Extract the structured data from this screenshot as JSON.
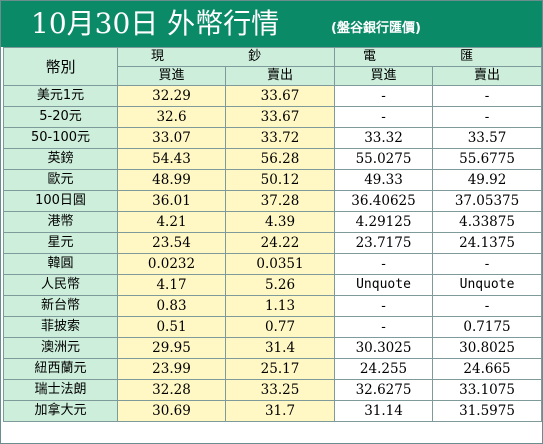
{
  "title": {
    "main": "10月30日 外幣行情",
    "source": "(盤谷銀行匯價)"
  },
  "headers": {
    "corner": "幣別",
    "cash": "現 鈔",
    "wire": "電 匯",
    "buy": "買進",
    "sell": "賣出"
  },
  "rows": [
    {
      "currency": "美元1元",
      "cash_buy": "32.29",
      "cash_sell": "33.67",
      "wire_buy": "-",
      "wire_sell": "-"
    },
    {
      "currency": "5-20元",
      "cash_buy": "32.6",
      "cash_sell": "33.67",
      "wire_buy": "-",
      "wire_sell": "-"
    },
    {
      "currency": "50-100元",
      "cash_buy": "33.07",
      "cash_sell": "33.72",
      "wire_buy": "33.32",
      "wire_sell": "33.57"
    },
    {
      "currency": "英鎊",
      "cash_buy": "54.43",
      "cash_sell": "56.28",
      "wire_buy": "55.0275",
      "wire_sell": "55.6775"
    },
    {
      "currency": "歐元",
      "cash_buy": "48.99",
      "cash_sell": "50.12",
      "wire_buy": "49.33",
      "wire_sell": "49.92"
    },
    {
      "currency": "100日圓",
      "cash_buy": "36.01",
      "cash_sell": "37.28",
      "wire_buy": "36.40625",
      "wire_sell": "37.05375"
    },
    {
      "currency": "港幣",
      "cash_buy": "4.21",
      "cash_sell": "4.39",
      "wire_buy": "4.29125",
      "wire_sell": "4.33875"
    },
    {
      "currency": "星元",
      "cash_buy": "23.54",
      "cash_sell": "24.22",
      "wire_buy": "23.7175",
      "wire_sell": "24.1375"
    },
    {
      "currency": "韓圓",
      "cash_buy": "0.0232",
      "cash_sell": "0.0351",
      "wire_buy": "-",
      "wire_sell": "-"
    },
    {
      "currency": "人民幣",
      "cash_buy": "4.17",
      "cash_sell": "5.26",
      "wire_buy": "Unquote",
      "wire_sell": "Unquote"
    },
    {
      "currency": "新台幣",
      "cash_buy": "0.83",
      "cash_sell": "1.13",
      "wire_buy": "-",
      "wire_sell": "-"
    },
    {
      "currency": "菲披索",
      "cash_buy": "0.51",
      "cash_sell": "0.77",
      "wire_buy": "-",
      "wire_sell": "0.7175"
    },
    {
      "currency": "澳洲元",
      "cash_buy": "29.95",
      "cash_sell": "31.4",
      "wire_buy": "30.3025",
      "wire_sell": "30.8025"
    },
    {
      "currency": "紐西蘭元",
      "cash_buy": "23.99",
      "cash_sell": "25.17",
      "wire_buy": "24.255",
      "wire_sell": "24.665"
    },
    {
      "currency": "瑞士法朗",
      "cash_buy": "32.28",
      "cash_sell": "33.25",
      "wire_buy": "32.6275",
      "wire_sell": "33.1075"
    },
    {
      "currency": "加拿大元",
      "cash_buy": "30.69",
      "cash_sell": "31.7",
      "wire_buy": "31.14",
      "wire_sell": "31.5975"
    }
  ],
  "colors": {
    "title_bg": "#0b8a68",
    "header_bg": "#cdeedb",
    "cash_bg": "#fff8c4",
    "wire_bg": "#ffffff"
  }
}
